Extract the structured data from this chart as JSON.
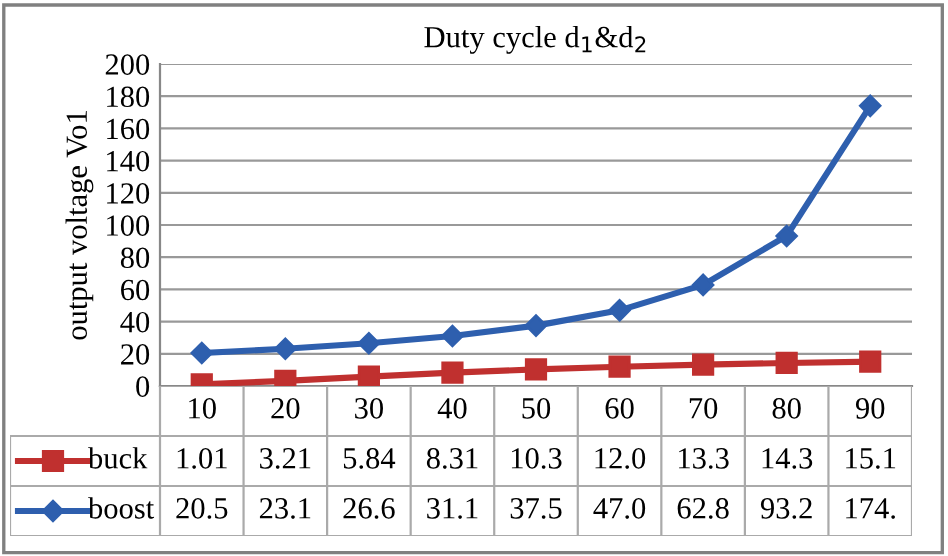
{
  "chart_data": {
    "type": "line",
    "title": "Duty cycle d$_{1}$&d$_{2}$",
    "ylabel": "output voltage Vo1",
    "categories": [
      "10",
      "20",
      "30",
      "40",
      "50",
      "60",
      "70",
      "80",
      "90"
    ],
    "series": [
      {
        "name": "buck",
        "color": "#c0302f",
        "marker": "square",
        "values": [
          1.01,
          3.21,
          5.84,
          8.31,
          10.3,
          12.0,
          13.3,
          14.3,
          15.1
        ],
        "value_labels": [
          "1.01",
          "3.21",
          "5.84",
          "8.31",
          "10.3",
          "12.0",
          "13.3",
          "14.3",
          "15.1"
        ]
      },
      {
        "name": "boost",
        "color": "#2e5fae",
        "marker": "diamond",
        "values": [
          20.5,
          23.1,
          26.6,
          31.1,
          37.5,
          47.0,
          62.8,
          93.2,
          174
        ],
        "value_labels": [
          "20.5",
          "23.1",
          "26.6",
          "31.1",
          "37.5",
          "47.0",
          "62.8",
          "93.2",
          "174."
        ]
      }
    ],
    "ylim": [
      0,
      200
    ],
    "yticks": [
      0,
      20,
      40,
      60,
      80,
      100,
      120,
      140,
      160,
      180,
      200
    ],
    "grid": "y",
    "legend": "bottom"
  }
}
